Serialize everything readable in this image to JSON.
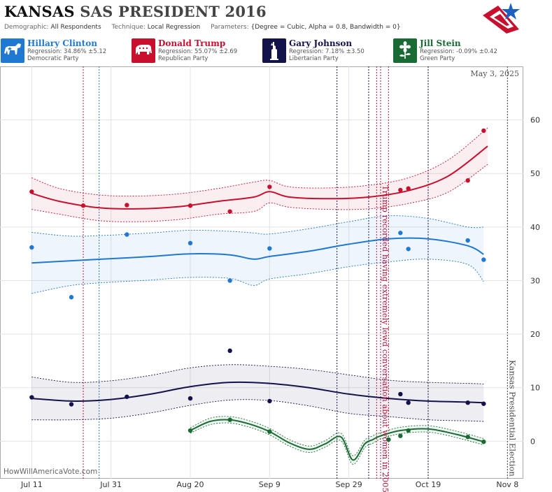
{
  "header": {
    "state": "KANSAS",
    "state_suffix": "SAS PRESIDENT 2016",
    "demographic_label": "Demographic:",
    "demographic_value": "All Respondents",
    "technique_label": "Technique:",
    "technique_value": "Local Regression",
    "parameters_label": "Parameters:",
    "parameters_value": "{Degree = Cubic, Alpha = 0.8, Bandwidth = 0}"
  },
  "candidates": [
    {
      "name": "Hillary Clinton",
      "regression": "Regression: 34.86% ±5.12",
      "party": "Democratic Party",
      "color": "#1f78d1",
      "icon": "donkey-icon"
    },
    {
      "name": "Donald Trump",
      "regression": "Regression: 55.07% ±2.69",
      "party": "Republican Party",
      "color": "#c8102e",
      "icon": "elephant-icon"
    },
    {
      "name": "Gary Johnson",
      "regression": "Regression: 7.18% ±3.50",
      "party": "Libertarian Party",
      "color": "#14124a",
      "icon": "liberty-statue-icon"
    },
    {
      "name": "Jill Stein",
      "regression": "Regression: -0.09% ±0.42",
      "party": "Green Party",
      "color": "#1a6b33",
      "icon": "flower-icon"
    }
  ],
  "chart_data": {
    "type": "line",
    "date_label": "May 3, 2025",
    "watermark": "HowWillAmericaVote.com",
    "x_ticks": [
      {
        "date": "2016-07-11",
        "label": "Jul 11"
      },
      {
        "date": "2016-07-31",
        "label": "Jul 31"
      },
      {
        "date": "2016-08-20",
        "label": "Aug 20"
      },
      {
        "date": "2016-09-09",
        "label": "Sep 9"
      },
      {
        "date": "2016-09-29",
        "label": "Sep 29"
      },
      {
        "date": "2016-10-19",
        "label": "Oct 19"
      },
      {
        "date": "2016-11-08",
        "label": "Nov 8"
      }
    ],
    "xlim": [
      "2016-07-03",
      "2016-11-12"
    ],
    "ylim": [
      -7,
      70
    ],
    "y_ticks": [
      0,
      10,
      20,
      30,
      40,
      50,
      60
    ],
    "grid": true,
    "annotations": [
      {
        "date": "2016-10-07",
        "text": "Trump recorded having extremely lewd conversation about women in 2005",
        "color": "#b0103a"
      },
      {
        "date": "2016-11-08",
        "text": "Kansas Presidential Election",
        "color": "#444444"
      }
    ],
    "event_lines": [
      {
        "date": "2016-07-24",
        "color": "#c8102e"
      },
      {
        "date": "2016-07-28",
        "color": "#1f78d1"
      },
      {
        "date": "2016-09-26",
        "color": "#14124a"
      },
      {
        "date": "2016-10-04",
        "color": "#14124a"
      },
      {
        "date": "2016-10-06",
        "color": "#c8102e"
      },
      {
        "date": "2016-10-09",
        "color": "#c8102e"
      },
      {
        "date": "2016-10-19",
        "color": "#14124a"
      }
    ],
    "series": [
      {
        "name": "Donald Trump",
        "color": "#c8102e",
        "x": [
          "2016-07-11",
          "2016-07-18",
          "2016-07-28",
          "2016-08-07",
          "2016-08-17",
          "2016-08-27",
          "2016-09-05",
          "2016-09-09",
          "2016-09-14",
          "2016-09-24",
          "2016-10-04",
          "2016-10-14",
          "2016-10-24",
          "2016-11-03"
        ],
        "y": [
          46.3,
          44.8,
          43.6,
          43.4,
          43.8,
          44.8,
          45.6,
          46.6,
          45.6,
          45.3,
          45.6,
          46.8,
          49.5,
          55.1
        ],
        "upper": [
          49.2,
          47.2,
          46.0,
          45.8,
          46.2,
          47.2,
          48.4,
          48.7,
          47.5,
          47.3,
          47.8,
          49.2,
          52.5,
          58.5
        ],
        "lower": [
          43.3,
          42.4,
          41.2,
          41.0,
          41.4,
          42.4,
          42.9,
          44.5,
          43.7,
          43.3,
          43.4,
          44.4,
          46.5,
          51.7
        ],
        "points": [
          [
            "2016-07-11",
            46.6
          ],
          [
            "2016-07-24",
            44.0
          ],
          [
            "2016-08-04",
            44.1
          ],
          [
            "2016-08-20",
            44.0
          ],
          [
            "2016-08-30",
            42.9
          ],
          [
            "2016-09-09",
            47.5
          ],
          [
            "2016-10-12",
            46.9
          ],
          [
            "2016-10-14",
            47.2
          ],
          [
            "2016-10-29",
            48.7
          ],
          [
            "2016-11-02",
            58.0
          ]
        ]
      },
      {
        "name": "Hillary Clinton",
        "color": "#1f78d1",
        "x": [
          "2016-07-11",
          "2016-07-21",
          "2016-07-31",
          "2016-08-10",
          "2016-08-20",
          "2016-08-30",
          "2016-09-05",
          "2016-09-09",
          "2016-09-19",
          "2016-09-29",
          "2016-10-09",
          "2016-10-19",
          "2016-10-29",
          "2016-11-02"
        ],
        "y": [
          33.3,
          33.7,
          34.1,
          34.5,
          35.0,
          34.8,
          34.0,
          34.5,
          35.5,
          36.8,
          37.8,
          37.8,
          36.5,
          34.9
        ],
        "upper": [
          39.0,
          38.3,
          38.5,
          38.9,
          39.4,
          39.2,
          38.9,
          38.7,
          39.7,
          41.0,
          42.1,
          41.6,
          40.0,
          40.0
        ],
        "lower": [
          27.6,
          29.1,
          29.7,
          30.1,
          30.6,
          30.4,
          29.1,
          30.3,
          31.3,
          32.6,
          33.5,
          34.0,
          33.0,
          29.8
        ],
        "points": [
          [
            "2016-07-11",
            36.2
          ],
          [
            "2016-07-21",
            26.9
          ],
          [
            "2016-08-04",
            38.6
          ],
          [
            "2016-08-20",
            37.0
          ],
          [
            "2016-08-30",
            30.0
          ],
          [
            "2016-09-09",
            36.0
          ],
          [
            "2016-10-12",
            38.9
          ],
          [
            "2016-10-14",
            35.9
          ],
          [
            "2016-10-29",
            37.5
          ],
          [
            "2016-11-02",
            33.9
          ]
        ]
      },
      {
        "name": "Gary Johnson",
        "color": "#14124a",
        "x": [
          "2016-07-11",
          "2016-07-21",
          "2016-07-31",
          "2016-08-10",
          "2016-08-20",
          "2016-08-30",
          "2016-09-09",
          "2016-09-19",
          "2016-09-29",
          "2016-10-09",
          "2016-10-19",
          "2016-10-29",
          "2016-11-02"
        ],
        "y": [
          8.0,
          7.5,
          7.8,
          8.8,
          10.2,
          11.0,
          10.8,
          10.0,
          8.8,
          8.0,
          7.5,
          7.3,
          7.2
        ],
        "upper": [
          12.0,
          11.0,
          11.3,
          12.3,
          13.7,
          14.3,
          14.0,
          13.4,
          12.4,
          11.4,
          11.0,
          10.8,
          10.7
        ],
        "lower": [
          4.0,
          4.0,
          4.3,
          5.3,
          6.7,
          7.7,
          7.6,
          6.6,
          5.2,
          4.6,
          4.0,
          3.8,
          3.7
        ],
        "points": [
          [
            "2016-07-11",
            8.2
          ],
          [
            "2016-07-21",
            6.9
          ],
          [
            "2016-08-04",
            8.3
          ],
          [
            "2016-08-20",
            8.0
          ],
          [
            "2016-08-30",
            16.9
          ],
          [
            "2016-09-09",
            7.5
          ],
          [
            "2016-10-12",
            8.8
          ],
          [
            "2016-10-14",
            7.2
          ],
          [
            "2016-10-29",
            7.2
          ],
          [
            "2016-11-02",
            7.0
          ]
        ]
      },
      {
        "name": "Jill Stein",
        "color": "#1a6b33",
        "x": [
          "2016-08-20",
          "2016-08-25",
          "2016-08-30",
          "2016-09-04",
          "2016-09-09",
          "2016-09-14",
          "2016-09-19",
          "2016-09-23",
          "2016-09-27",
          "2016-09-30",
          "2016-10-03",
          "2016-10-05",
          "2016-10-07",
          "2016-10-12",
          "2016-10-19",
          "2016-10-26",
          "2016-11-02"
        ],
        "y": [
          2.0,
          3.7,
          4.0,
          3.2,
          1.8,
          -0.3,
          -1.5,
          -0.5,
          0.8,
          -3.5,
          -0.5,
          0.3,
          1.0,
          2.0,
          2.3,
          1.3,
          -0.1
        ],
        "upper": [
          2.5,
          4.3,
          4.6,
          3.8,
          2.4,
          0.3,
          -0.9,
          0.1,
          1.5,
          -2.7,
          0.2,
          1.0,
          1.6,
          2.6,
          2.9,
          1.9,
          0.5
        ],
        "lower": [
          1.5,
          3.1,
          3.4,
          2.6,
          1.2,
          -0.9,
          -2.1,
          -1.1,
          0.1,
          -4.3,
          -1.2,
          -0.4,
          0.4,
          1.4,
          1.7,
          0.7,
          -0.7
        ],
        "points": [
          [
            "2016-08-20",
            2.0
          ],
          [
            "2016-08-30",
            4.0
          ],
          [
            "2016-09-09",
            1.8
          ],
          [
            "2016-10-09",
            0.3
          ],
          [
            "2016-10-12",
            1.0
          ],
          [
            "2016-10-14",
            2.0
          ],
          [
            "2016-10-29",
            0.8
          ],
          [
            "2016-11-02",
            -0.1
          ]
        ]
      }
    ]
  }
}
